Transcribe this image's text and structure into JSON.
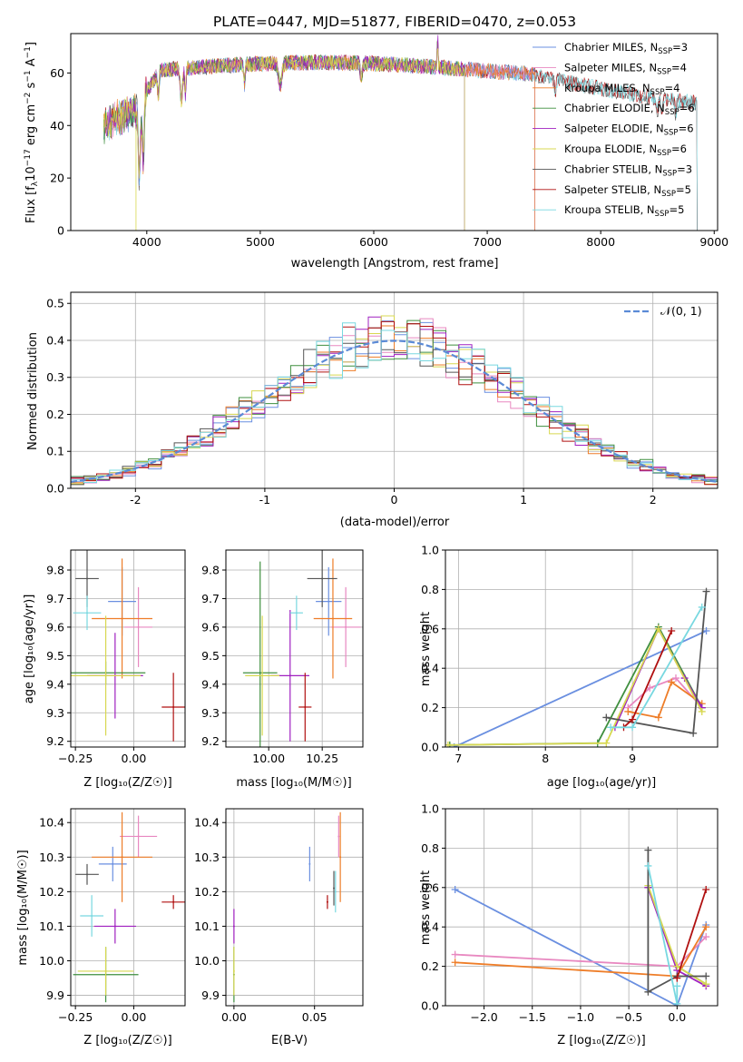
{
  "colors": [
    "#6a8fe0",
    "#e888c0",
    "#ee7d28",
    "#3f8f3f",
    "#a020c0",
    "#d8d850",
    "#555555",
    "#b01010",
    "#78d8e0"
  ],
  "legend_entries": [
    {
      "base": "Chabrier MILES, N",
      "sub": "SSP",
      "val": "=3"
    },
    {
      "base": "Salpeter MILES, N",
      "sub": "SSP",
      "val": "=4"
    },
    {
      "base": "Kroupa MILES, N",
      "sub": "SSP",
      "val": "=4"
    },
    {
      "base": "Chabrier ELODIE, N",
      "sub": "SSP",
      "val": "=6"
    },
    {
      "base": "Salpeter ELODIE, N",
      "sub": "SSP",
      "val": "=6"
    },
    {
      "base": "Kroupa ELODIE, N",
      "sub": "SSP",
      "val": "=6"
    },
    {
      "base": "Chabrier STELIB, N",
      "sub": "SSP",
      "val": "=3"
    },
    {
      "base": "Salpeter STELIB, N",
      "sub": "SSP",
      "val": "=5"
    },
    {
      "base": "Kroupa STELIB, N",
      "sub": "SSP",
      "val": "=5"
    }
  ],
  "chart_data": [
    {
      "id": "spectrum",
      "type": "line",
      "title": "PLATE=0447, MJD=51877, FIBERID=0470, z=0.053",
      "xlabel": "wavelength [Angstrom, rest frame]",
      "ylabel_parts": [
        "Flux [f",
        "λ",
        "10",
        "−17",
        " erg cm",
        "−2",
        " s",
        "−1",
        " A",
        "−1",
        "]"
      ],
      "xlim": [
        3330,
        9030
      ],
      "ylim": [
        0,
        75
      ],
      "xticks": [
        4000,
        5000,
        6000,
        7000,
        8000,
        9000
      ],
      "yticks": [
        0,
        20,
        40,
        60
      ],
      "series": [
        {
          "name": "Chabrier MILES",
          "range": [
            3620,
            7420
          ]
        },
        {
          "name": "Salpeter MILES",
          "range": [
            3620,
            7420
          ]
        },
        {
          "name": "Kroupa MILES",
          "range": [
            3620,
            7420
          ]
        },
        {
          "name": "Chabrier ELODIE",
          "range": [
            3620,
            6800
          ]
        },
        {
          "name": "Salpeter ELODIE",
          "range": [
            3620,
            6800
          ]
        },
        {
          "name": "Kroupa ELODIE",
          "range": [
            3620,
            6800
          ]
        },
        {
          "name": "Chabrier STELIB",
          "range": [
            3620,
            8850
          ]
        },
        {
          "name": "Salpeter STELIB",
          "range": [
            3620,
            8850
          ]
        },
        {
          "name": "Kroupa STELIB",
          "range": [
            3620,
            8850
          ]
        }
      ]
    },
    {
      "id": "residuals",
      "type": "line",
      "xlabel": "(data-model)/error",
      "ylabel": "Normed distribution",
      "xlim": [
        -2.5,
        2.5
      ],
      "ylim": [
        0,
        0.53
      ],
      "xticks": [
        -2,
        -1,
        0,
        1,
        2
      ],
      "yticks": [
        0.0,
        0.1,
        0.2,
        0.3,
        0.4,
        0.5
      ],
      "legend": "𝒩(0, 1)",
      "reference_curve": "normal(0,1)"
    },
    {
      "id": "age_vs_Z",
      "type": "scatter",
      "xlabel": "Z [log₁₀(Z/Z☉)]",
      "ylabel": "age  [log₁₀(age/yr)]",
      "xlim": [
        -0.27,
        0.22
      ],
      "ylim": [
        9.18,
        9.87
      ],
      "xticks": [
        -0.25,
        0.0
      ],
      "xticklabels": [
        "−0.25",
        "0.00"
      ],
      "yticks": [
        9.2,
        9.3,
        9.4,
        9.5,
        9.6,
        9.7,
        9.8
      ],
      "points": [
        {
          "x": -0.05,
          "y": 9.69,
          "xe": 0.06,
          "ye": 0.12
        },
        {
          "x": 0.02,
          "y": 9.6,
          "xe": 0.06,
          "ye": 0.14
        },
        {
          "x": -0.05,
          "y": 9.63,
          "xe": 0.13,
          "ye": 0.21
        },
        {
          "x": -0.12,
          "y": 9.44,
          "xe": 0.17,
          "ye": 0.04
        },
        {
          "x": -0.08,
          "y": 9.43,
          "xe": 0.12,
          "ye": 0.15
        },
        {
          "x": -0.12,
          "y": 9.43,
          "xe": 0.15,
          "ye": 0.21
        },
        {
          "x": -0.2,
          "y": 9.77,
          "xe": 0.05,
          "ye": 0.1
        },
        {
          "x": 0.17,
          "y": 9.32,
          "xe": 0.05,
          "ye": 0.12
        },
        {
          "x": -0.2,
          "y": 9.65,
          "xe": 0.06,
          "ye": 0.06
        }
      ]
    },
    {
      "id": "age_vs_mass",
      "type": "scatter",
      "xlabel": "mass [log₁₀(M/M☉)]",
      "ylabel": "",
      "xlim": [
        9.8,
        10.44
      ],
      "ylim": [
        9.18,
        9.87
      ],
      "xticks": [
        10.0,
        10.25
      ],
      "xticklabels": [
        "10.00",
        "10.25"
      ],
      "yticks": [
        9.2,
        9.3,
        9.4,
        9.5,
        9.6,
        9.7,
        9.8
      ],
      "points": [
        {
          "x": 10.28,
          "y": 9.69,
          "xe": 0.06,
          "ye": 0.12
        },
        {
          "x": 10.36,
          "y": 9.6,
          "xe": 0.07,
          "ye": 0.14
        },
        {
          "x": 10.3,
          "y": 9.63,
          "xe": 0.09,
          "ye": 0.21
        },
        {
          "x": 9.96,
          "y": 9.44,
          "xe": 0.08,
          "ye": 0.39
        },
        {
          "x": 10.1,
          "y": 9.43,
          "xe": 0.09,
          "ye": 0.23
        },
        {
          "x": 9.97,
          "y": 9.43,
          "xe": 0.08,
          "ye": 0.21
        },
        {
          "x": 10.25,
          "y": 9.77,
          "xe": 0.07,
          "ye": 0.1
        },
        {
          "x": 10.17,
          "y": 9.32,
          "xe": 0.03,
          "ye": 0.12
        },
        {
          "x": 10.13,
          "y": 9.65,
          "xe": 0.03,
          "ye": 0.06
        }
      ]
    },
    {
      "id": "mw_vs_age",
      "type": "line",
      "xlabel": "age  [log₁₀(age/yr)]",
      "ylabel": "mass weight",
      "xlim": [
        6.85,
        9.98
      ],
      "ylim": [
        0,
        1
      ],
      "xticks": [
        7,
        8,
        9
      ],
      "yticks": [
        0.0,
        0.2,
        0.4,
        0.6,
        0.8,
        1.0
      ],
      "series": [
        {
          "x": [
            6.95,
            9.85
          ],
          "y": [
            0.0,
            0.59
          ]
        },
        {
          "x": [
            8.95,
            9.2,
            9.5,
            9.8
          ],
          "y": [
            0.2,
            0.3,
            0.35,
            0.2
          ]
        },
        {
          "x": [
            8.95,
            9.3,
            9.45,
            9.8
          ],
          "y": [
            0.18,
            0.15,
            0.33,
            0.22
          ]
        },
        {
          "x": [
            6.9,
            8.6,
            9.3,
            9.8
          ],
          "y": [
            0.01,
            0.02,
            0.61,
            0.2
          ]
        },
        {
          "x": [
            8.8,
            9.3,
            9.6,
            9.8
          ],
          "y": [
            0.1,
            0.6,
            0.35,
            0.2
          ]
        },
        {
          "x": [
            6.88,
            8.7,
            9.3,
            9.8
          ],
          "y": [
            0.01,
            0.02,
            0.6,
            0.18
          ]
        },
        {
          "x": [
            8.7,
            9.7,
            9.85
          ],
          "y": [
            0.15,
            0.07,
            0.79
          ]
        },
        {
          "x": [
            8.9,
            9.0,
            9.45
          ],
          "y": [
            0.1,
            0.14,
            0.59
          ]
        },
        {
          "x": [
            8.75,
            9.0,
            9.8
          ],
          "y": [
            0.1,
            0.1,
            0.71
          ]
        }
      ]
    },
    {
      "id": "mass_vs_Z",
      "type": "scatter",
      "xlabel": "Z [log₁₀(Z/Z☉)]",
      "ylabel": "mass [log₁₀(M/M☉)]",
      "xlim": [
        -0.27,
        0.22
      ],
      "ylim": [
        9.87,
        10.44
      ],
      "xticks": [
        -0.25,
        0.0
      ],
      "xticklabels": [
        "−0.25",
        "0.00"
      ],
      "yticks": [
        9.9,
        10.0,
        10.1,
        10.2,
        10.3,
        10.4
      ],
      "points": [
        {
          "x": -0.09,
          "y": 10.28,
          "xe": 0.06,
          "ye": 0.05
        },
        {
          "x": 0.02,
          "y": 10.36,
          "xe": 0.08,
          "ye": 0.06
        },
        {
          "x": -0.05,
          "y": 10.3,
          "xe": 0.13,
          "ye": 0.13
        },
        {
          "x": -0.12,
          "y": 9.96,
          "xe": 0.14,
          "ye": 0.08
        },
        {
          "x": -0.08,
          "y": 10.1,
          "xe": 0.09,
          "ye": 0.05
        },
        {
          "x": -0.12,
          "y": 9.97,
          "xe": 0.12,
          "ye": 0.07
        },
        {
          "x": -0.2,
          "y": 10.25,
          "xe": 0.05,
          "ye": 0.03
        },
        {
          "x": 0.17,
          "y": 10.17,
          "xe": 0.05,
          "ye": 0.02
        },
        {
          "x": -0.18,
          "y": 10.13,
          "xe": 0.05,
          "ye": 0.06
        }
      ]
    },
    {
      "id": "mass_vs_ebv",
      "type": "scatter",
      "xlabel": "E(B-V)",
      "ylabel": "",
      "xlim": [
        -0.005,
        0.08
      ],
      "ylim": [
        9.87,
        10.44
      ],
      "xticks": [
        0.0,
        0.05
      ],
      "xticklabels": [
        "0.00",
        "0.05"
      ],
      "yticks": [
        9.9,
        10.0,
        10.1,
        10.2,
        10.3,
        10.4
      ],
      "points": [
        {
          "x": 0.047,
          "y": 10.28,
          "ye": 0.05
        },
        {
          "x": 0.065,
          "y": 10.36,
          "ye": 0.06
        },
        {
          "x": 0.066,
          "y": 10.3,
          "ye": 0.13
        },
        {
          "x": 0.0,
          "y": 9.96,
          "ye": 0.08
        },
        {
          "x": 0.0,
          "y": 10.1,
          "ye": 0.05
        },
        {
          "x": 0.0,
          "y": 9.97,
          "ye": 0.07
        },
        {
          "x": 0.062,
          "y": 10.21,
          "ye": 0.05
        },
        {
          "x": 0.058,
          "y": 10.17,
          "ye": 0.02
        },
        {
          "x": 0.063,
          "y": 10.2,
          "ye": 0.06
        }
      ]
    },
    {
      "id": "mw_vs_Z",
      "type": "line",
      "xlabel": "Z [log₁₀(Z/Z☉)]",
      "ylabel": "mass weight",
      "xlim": [
        -2.4,
        0.42
      ],
      "ylim": [
        0,
        1
      ],
      "xticks": [
        -2.0,
        -1.5,
        -1.0,
        -0.5,
        0.0
      ],
      "xticklabels": [
        "−2.0",
        "−1.5",
        "−1.0",
        "−0.5",
        "0.0"
      ],
      "yticks": [
        0.0,
        0.2,
        0.4,
        0.6,
        0.8,
        1.0
      ],
      "series": [
        {
          "x": [
            -2.3,
            0.0,
            0.3
          ],
          "y": [
            0.59,
            0.0,
            0.41
          ]
        },
        {
          "x": [
            -2.3,
            0.0,
            0.3
          ],
          "y": [
            0.26,
            0.2,
            0.35
          ]
        },
        {
          "x": [
            -2.3,
            0.0,
            0.3
          ],
          "y": [
            0.22,
            0.15,
            0.4
          ]
        },
        {
          "x": [
            -0.3,
            0.0,
            0.3
          ],
          "y": [
            0.6,
            0.2,
            0.11
          ]
        },
        {
          "x": [
            -0.3,
            0.0,
            0.3
          ],
          "y": [
            0.6,
            0.18,
            0.1
          ]
        },
        {
          "x": [
            -0.3,
            0.0,
            0.3
          ],
          "y": [
            0.61,
            0.2,
            0.11
          ]
        },
        {
          "x": [
            -0.3,
            -0.3,
            0.0,
            0.3
          ],
          "y": [
            0.79,
            0.07,
            0.15,
            0.15
          ]
        },
        {
          "x": [
            0.0,
            0.3
          ],
          "y": [
            0.14,
            0.59
          ]
        },
        {
          "x": [
            -0.3,
            0.0,
            0.0
          ],
          "y": [
            0.71,
            0.01,
            0.1
          ]
        }
      ]
    }
  ]
}
